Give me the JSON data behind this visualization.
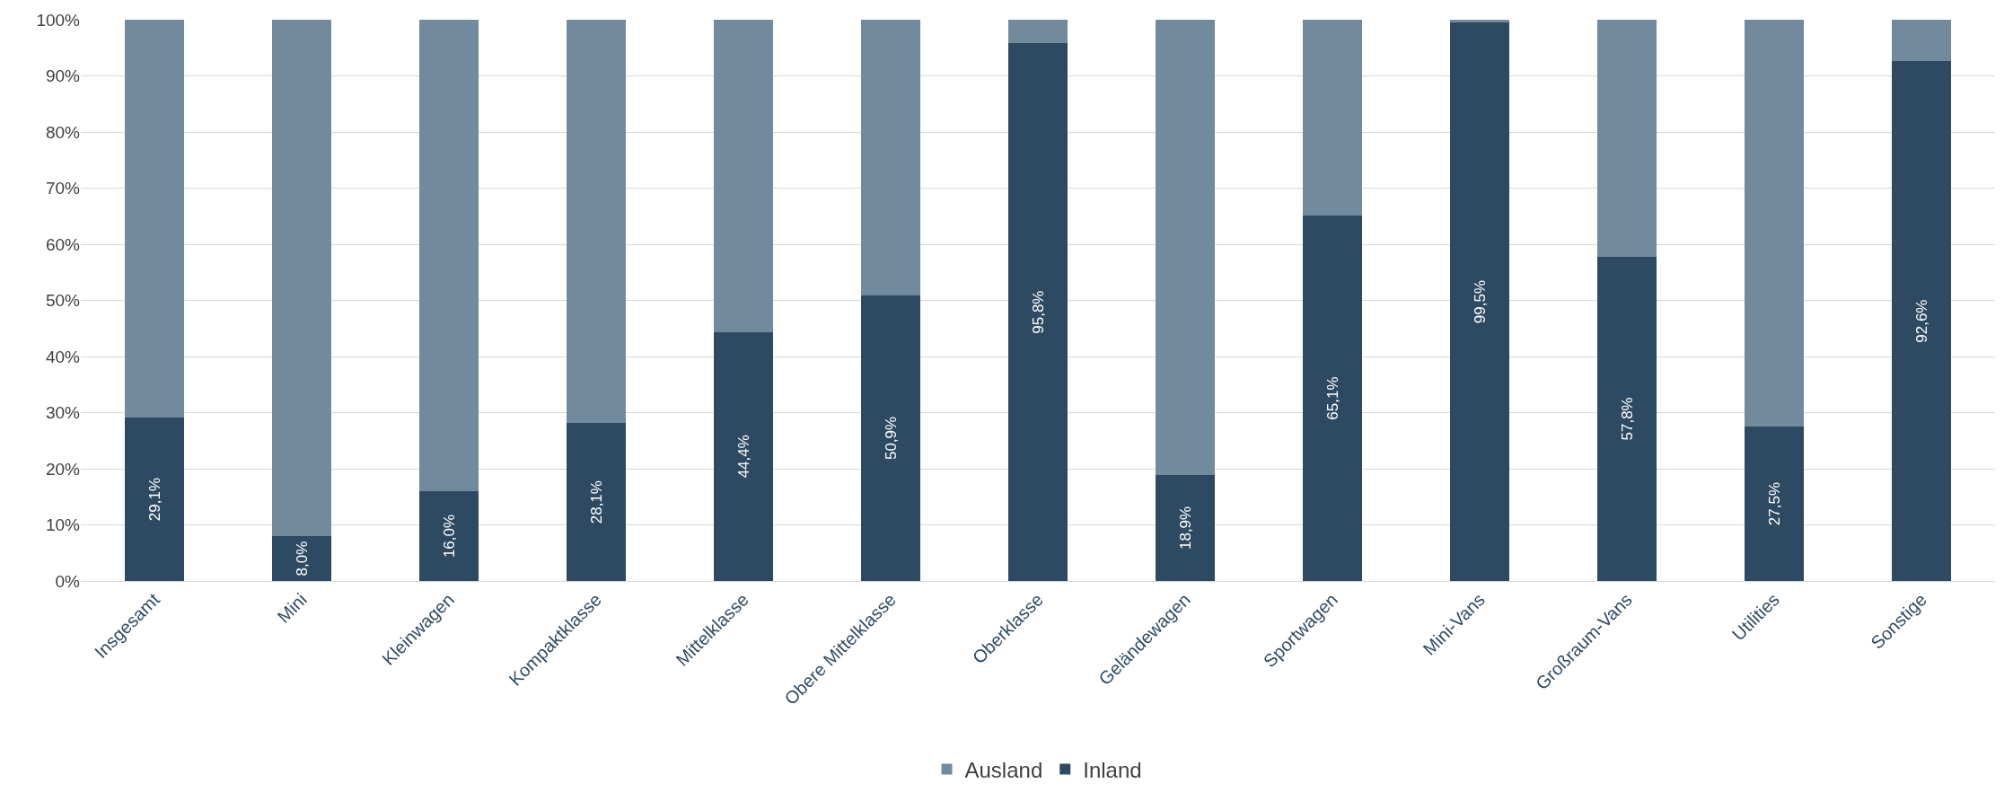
{
  "chart_data": {
    "type": "bar",
    "stacked": true,
    "categories": [
      "Insgesamt",
      "Mini",
      "Kleinwagen",
      "Kompaktklasse",
      "Mittelklasse",
      "Obere Mittelklasse",
      "Oberklasse",
      "Geländewagen",
      "Sportwagen",
      "Mini-Vans",
      "Großraum-Vans",
      "Utilities",
      "Sonstige"
    ],
    "series": [
      {
        "name": "Inland",
        "color": "#2e4a63",
        "values": [
          29.1,
          8.0,
          16.0,
          28.1,
          44.4,
          50.9,
          95.8,
          18.9,
          65.1,
          99.5,
          57.8,
          27.5,
          92.6
        ],
        "value_labels": [
          "29,1%",
          "8,0%",
          "16,0%",
          "28,1%",
          "44,4%",
          "50,9%",
          "95,8%",
          "18,9%",
          "65,1%",
          "99,5%",
          "57,8%",
          "27,5%",
          "92,6%"
        ]
      },
      {
        "name": "Ausland",
        "color": "#728a9e",
        "values": [
          70.9,
          92.0,
          84.0,
          71.9,
          55.6,
          49.1,
          4.2,
          81.1,
          34.9,
          0.5,
          42.2,
          72.5,
          7.4
        ]
      }
    ],
    "ylim": [
      0,
      100
    ],
    "yticks": [
      {
        "value": 0,
        "label": "0%"
      },
      {
        "value": 10,
        "label": "10%"
      },
      {
        "value": 20,
        "label": "20%"
      },
      {
        "value": 30,
        "label": "30%"
      },
      {
        "value": 40,
        "label": "40%"
      },
      {
        "value": 50,
        "label": "50%"
      },
      {
        "value": 60,
        "label": "60%"
      },
      {
        "value": 70,
        "label": "70%"
      },
      {
        "value": 80,
        "label": "80%"
      },
      {
        "value": 90,
        "label": "90%"
      },
      {
        "value": 100,
        "label": "100%"
      }
    ],
    "grid": "y",
    "legend": "bottom"
  }
}
